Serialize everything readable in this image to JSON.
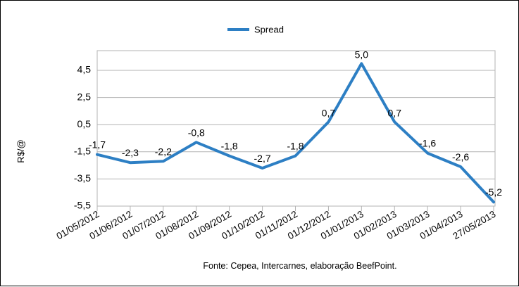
{
  "chart_data": {
    "type": "line",
    "title": "",
    "xlabel": "",
    "ylabel": "R$/@",
    "categories": [
      "01/05/2012",
      "01/06/2012",
      "01/07/2012",
      "01/08/2012",
      "01/09/2012",
      "01/10/2012",
      "01/11/2012",
      "01/12/2012",
      "01/01/2013",
      "01/02/2013",
      "01/03/2013",
      "01/04/2013",
      "27/05/2013"
    ],
    "series": [
      {
        "name": "Spread",
        "values": [
          -1.7,
          -2.3,
          -2.2,
          -0.8,
          -1.8,
          -2.7,
          -1.8,
          0.7,
          5.0,
          0.7,
          -1.6,
          -2.6,
          -5.2
        ],
        "labels": [
          "-1,7",
          "-2,3",
          "-2,2",
          "-0,8",
          "-1,8",
          "-2,7",
          "-1,8",
          "0,7",
          "5,0",
          "0,7",
          "-1,6",
          "-2,6",
          "-5,2"
        ]
      }
    ],
    "yticks": [
      4.5,
      2.5,
      0.5,
      -1.5,
      -3.5,
      -5.5
    ],
    "ytick_labels": [
      "4,5",
      "2,5",
      "0,5",
      "-1,5",
      "-3,5",
      "-5,5"
    ],
    "ylim": [
      -5.5,
      5.5
    ],
    "grid": "horizontal",
    "legend": "top-center",
    "source": "Fonte: Cepea, Intercarnes, elaboração BeefPoint.",
    "colors": {
      "series": "#2d7fc4",
      "grid": "#b3b3b3",
      "axis": "#b3b3b3",
      "text": "#000000"
    }
  }
}
